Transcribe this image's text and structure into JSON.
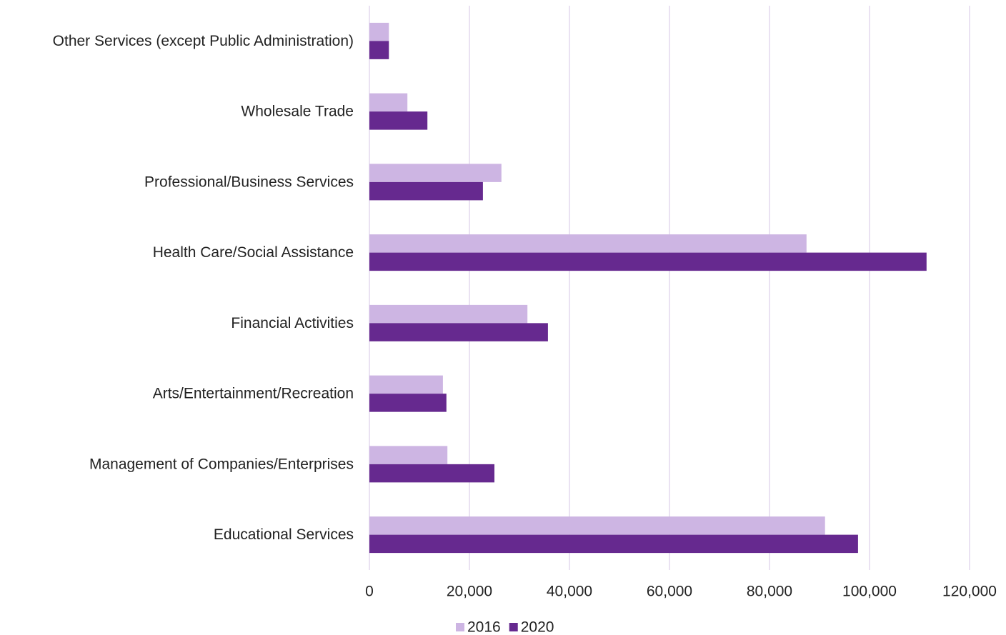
{
  "chart_data": {
    "type": "hbar",
    "categories": [
      "Other Services (except Public Administration)",
      "Wholesale Trade",
      "Professional/Business Services",
      "Health Care/Social Assistance",
      "Financial Activities",
      "Arts/Entertainment/Recreation",
      "Management of Companies/Enterprises",
      "Educational Services"
    ],
    "series": [
      {
        "name": "2016",
        "color": "#cdb5e3",
        "values": [
          3900,
          7600,
          26400,
          87400,
          31600,
          14700,
          15600,
          91100
        ]
      },
      {
        "name": "2020",
        "color": "#66298f",
        "values": [
          3900,
          11600,
          22700,
          111400,
          35700,
          15400,
          25000,
          97700
        ]
      }
    ],
    "xlim": [
      0,
      120000
    ],
    "xticks": [
      0,
      {
        "value": 20000,
        "label": "20,000"
      },
      {
        "value": 40000,
        "label": "40,000"
      },
      {
        "value": 60000,
        "label": "60,000"
      },
      {
        "value": 80000,
        "label": "80,000"
      },
      {
        "value": 100000,
        "label": "100,000"
      },
      {
        "value": 120000,
        "label": "120,000"
      }
    ],
    "grid": true,
    "legend": "bottom"
  }
}
